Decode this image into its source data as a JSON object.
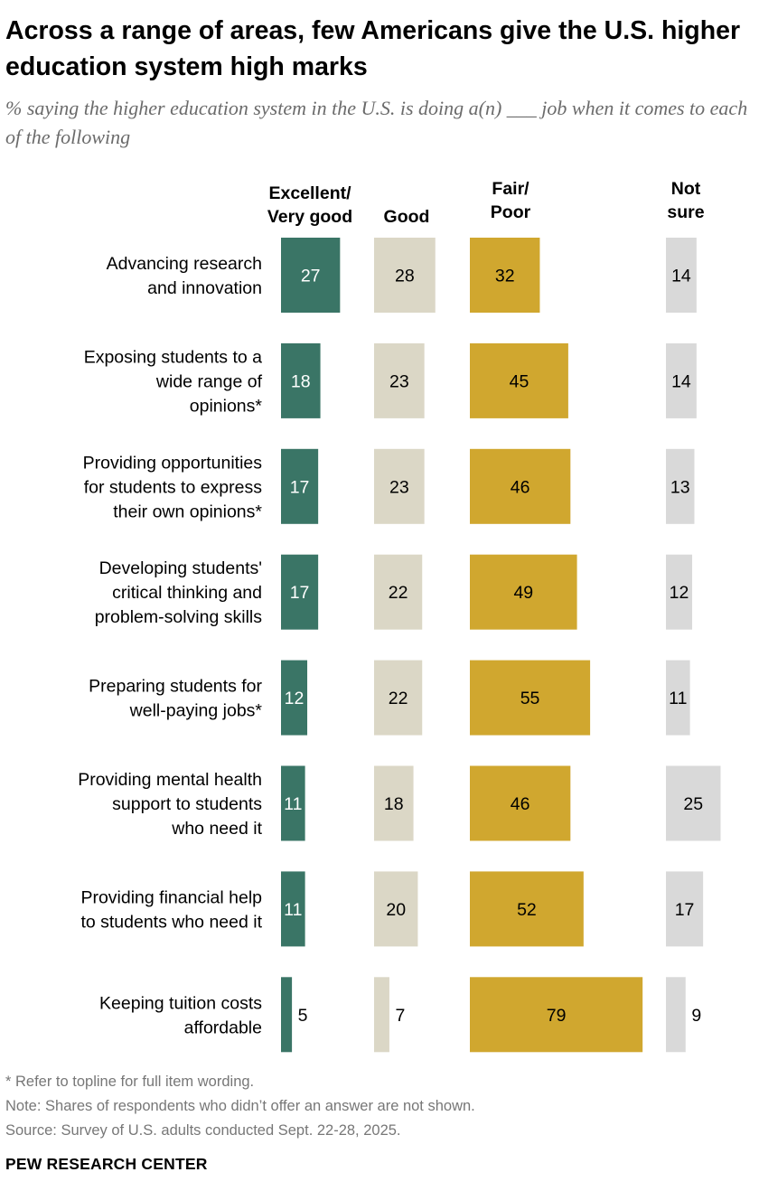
{
  "title": "Across a range of areas, few Americans give the U.S. higher education system high marks",
  "subtitle": "% saying the higher education system in the U.S. is doing a(n) ___ job when it comes to each of the following",
  "colors": {
    "excellent": "#3a7566",
    "good": "#dbd7c6",
    "fair": "#d0a72f",
    "notsure": "#d9d9d9"
  },
  "chart_data": {
    "type": "bar",
    "series": [
      {
        "name": "Excellent/ Very good",
        "values": [
          27,
          18,
          17,
          17,
          12,
          11,
          11,
          5
        ]
      },
      {
        "name": "Good",
        "values": [
          28,
          23,
          23,
          22,
          22,
          18,
          20,
          7
        ]
      },
      {
        "name": "Fair/ Poor",
        "values": [
          32,
          45,
          46,
          49,
          55,
          46,
          52,
          79
        ]
      },
      {
        "name": "Not sure",
        "values": [
          14,
          14,
          13,
          12,
          11,
          25,
          17,
          9
        ]
      }
    ],
    "categories": [
      [
        "Advancing research",
        "and innovation"
      ],
      [
        "Exposing students to a",
        "wide range of",
        "opinions*"
      ],
      [
        "Providing opportunities",
        "for students to express",
        "their own opinions*"
      ],
      [
        "Developing students'",
        "critical thinking and",
        "problem-solving skills"
      ],
      [
        "Preparing students for",
        "well-paying jobs*"
      ],
      [
        "Providing mental health",
        "support to students",
        "who need it"
      ],
      [
        "Providing financial help",
        "to students who need it"
      ],
      [
        "Keeping tuition costs",
        "affordable"
      ]
    ]
  },
  "headers": {
    "excellent": [
      "Excellent/",
      "Very good"
    ],
    "good": [
      "Good"
    ],
    "fair": [
      "Fair/",
      "Poor"
    ],
    "notsure": [
      "Not",
      "sure"
    ]
  },
  "footer": {
    "note1": "* Refer to topline for full item wording.",
    "note2": "Note: Shares of respondents who didn’t offer an answer are not shown.",
    "source": "Source: Survey of U.S. adults conducted Sept. 22-28, 2025."
  },
  "brand": "PEW RESEARCH CENTER"
}
